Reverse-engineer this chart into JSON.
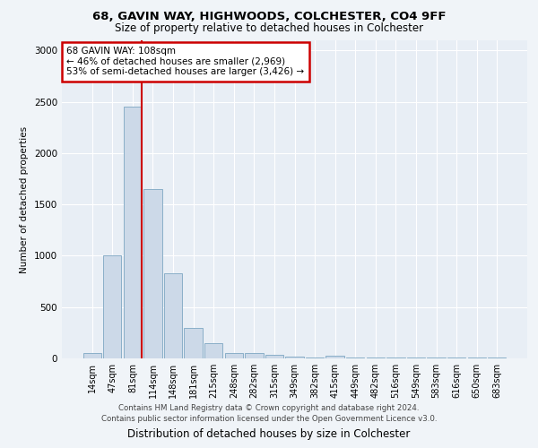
{
  "title1": "68, GAVIN WAY, HIGHWOODS, COLCHESTER, CO4 9FF",
  "title2": "Size of property relative to detached houses in Colchester",
  "xlabel": "Distribution of detached houses by size in Colchester",
  "ylabel": "Number of detached properties",
  "footer1": "Contains HM Land Registry data © Crown copyright and database right 2024.",
  "footer2": "Contains public sector information licensed under the Open Government Licence v3.0.",
  "bar_labels": [
    "14sqm",
    "47sqm",
    "81sqm",
    "114sqm",
    "148sqm",
    "181sqm",
    "215sqm",
    "248sqm",
    "282sqm",
    "315sqm",
    "349sqm",
    "382sqm",
    "415sqm",
    "449sqm",
    "482sqm",
    "516sqm",
    "549sqm",
    "583sqm",
    "616sqm",
    "650sqm",
    "683sqm"
  ],
  "bar_values": [
    55,
    1000,
    2450,
    1650,
    830,
    300,
    150,
    55,
    50,
    35,
    20,
    5,
    30,
    5,
    5,
    5,
    5,
    5,
    5,
    5,
    5
  ],
  "bar_color": "#ccd9e8",
  "bar_edge_color": "#8aafc8",
  "vline_color": "#cc0000",
  "annotation_text": "68 GAVIN WAY: 108sqm\n← 46% of detached houses are smaller (2,969)\n53% of semi-detached houses are larger (3,426) →",
  "annotation_box_color": "#ffffff",
  "annotation_box_edge": "#cc0000",
  "ylim": [
    0,
    3100
  ],
  "yticks": [
    0,
    500,
    1000,
    1500,
    2000,
    2500,
    3000
  ],
  "background_color": "#f0f4f8",
  "plot_bg_color": "#e8eef5",
  "title1_fontsize": 9.5,
  "title2_fontsize": 8.5,
  "ylabel_fontsize": 7.5,
  "xlabel_fontsize": 8.5,
  "tick_fontsize": 7,
  "annotation_fontsize": 7.5,
  "footer_fontsize": 6.2
}
